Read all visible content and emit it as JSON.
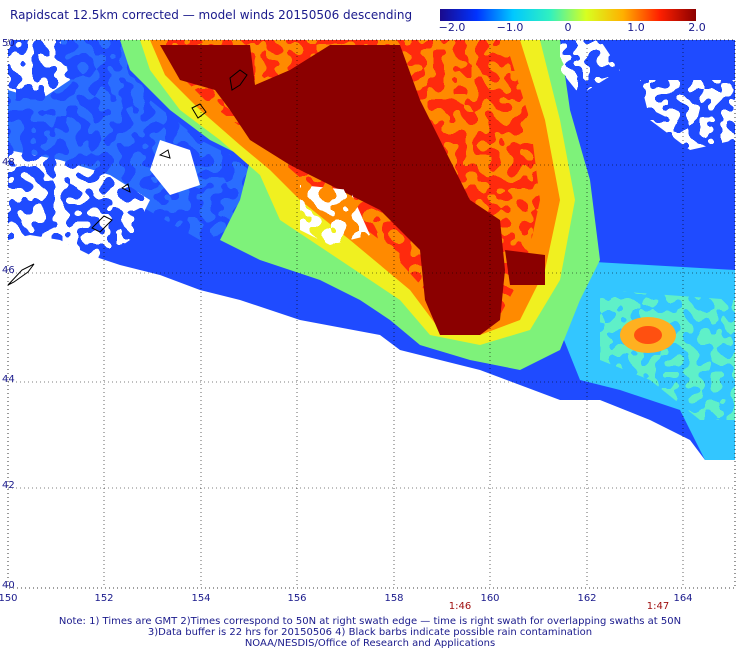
{
  "title": "Rapidscat 12.5km corrected — model winds 20150506 descending",
  "colorbar": {
    "min": -2.0,
    "max": 2.0,
    "tick_labels": [
      "−2.0",
      "−1.0",
      "0",
      "1.0",
      "2.0"
    ],
    "colors": [
      "#1a0a8c",
      "#0033ff",
      "#00c8ff",
      "#30f0c0",
      "#d8ff20",
      "#ffb000",
      "#ff2000",
      "#8b0000"
    ]
  },
  "map": {
    "lat_labels": [
      "50",
      "48",
      "46",
      "44",
      "42",
      "40"
    ],
    "lon_labels": [
      "150",
      "152",
      "154",
      "156",
      "158",
      "160",
      "162",
      "164"
    ],
    "time_labels": [
      "1:46",
      "1:47"
    ]
  },
  "notes": [
    "Note: 1) Times are GMT 2)Times correspond to 50N at right swath edge — time is right swath for overlapping swaths at 50N",
    "3)Data buffer is 22 hrs for 20150506 4) Black barbs indicate possible rain contamination",
    "NOAA/NESDIS/Office of Research and Applications"
  ]
}
